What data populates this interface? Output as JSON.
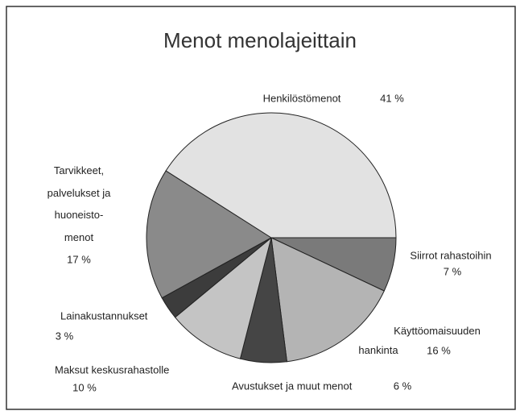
{
  "chart_data": {
    "type": "pie",
    "title": "Menot menolajeittain",
    "categories": [
      "Siirrot rahastoihin",
      "Käyttöomaisuuden\nhankinta",
      "Avustukset ja muut menot",
      "Maksut keskusrahastolle",
      "Lainakustannukset",
      "Tarvikkeet,\npalvelukset ja\nhuoneisto-\nmenot",
      "Henkilöstömenot"
    ],
    "values": [
      7,
      16,
      6,
      10,
      3,
      17,
      41
    ],
    "value_labels": [
      "7 %",
      "16 %",
      "6 %",
      "10 %",
      "3 %",
      "17 %",
      "41 %"
    ],
    "colors": [
      "#7a7a7a",
      "#b4b4b4",
      "#454545",
      "#c4c4c4",
      "#3c3c3c",
      "#8a8a8a",
      "#e2e2e2"
    ]
  }
}
